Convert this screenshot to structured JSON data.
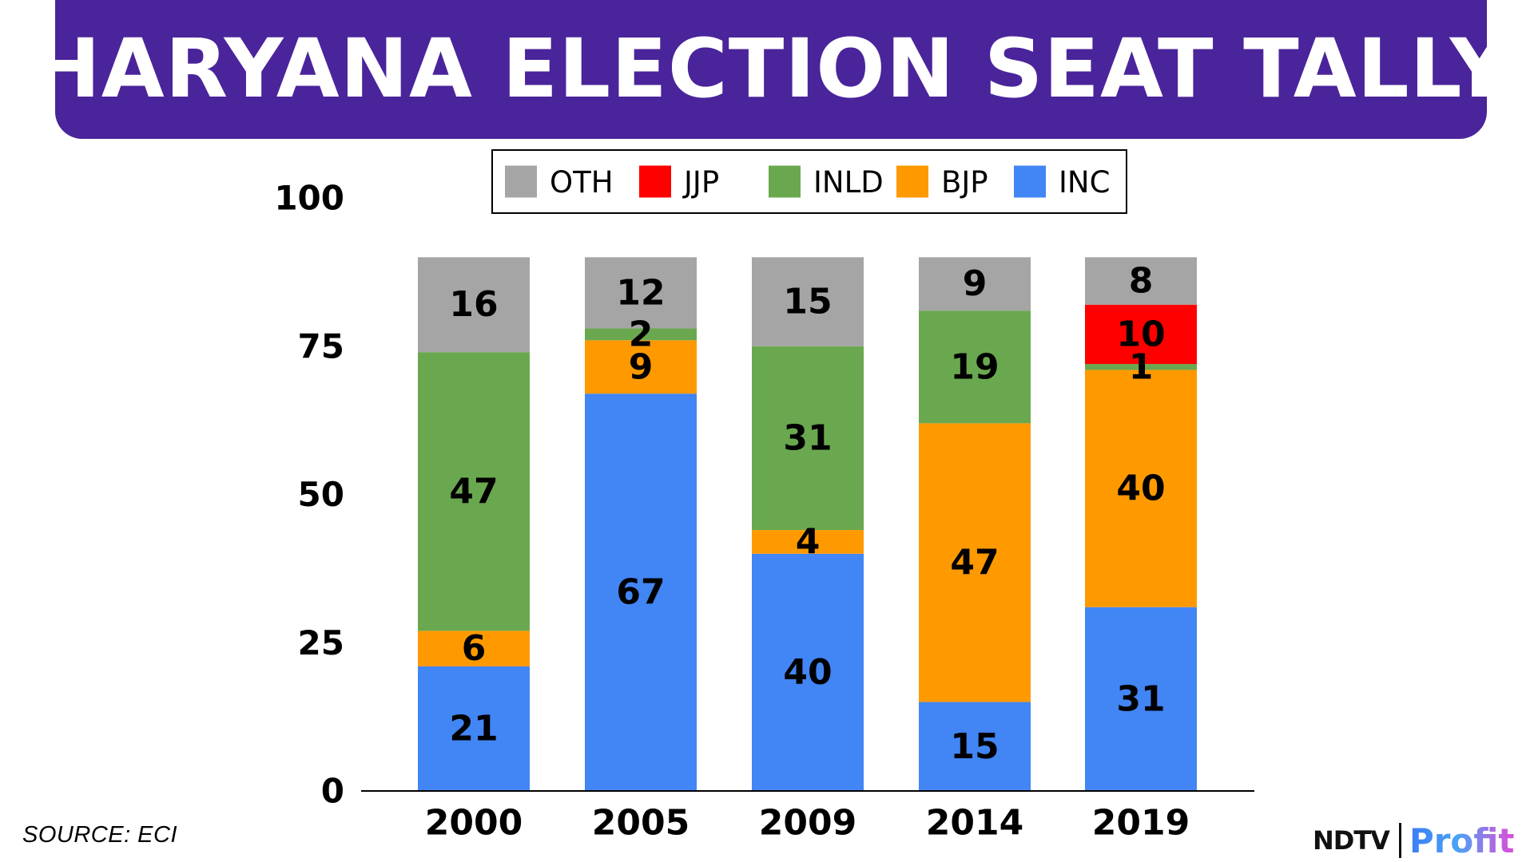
{
  "title": "HARYANA ELECTION SEAT TALLY",
  "source": "SOURCE: ECI",
  "brand": {
    "left": "NDTV",
    "right": "Profit"
  },
  "colors": {
    "banner": "#4a249b",
    "OTH": "#a5a5a5",
    "JJP": "#ff0000",
    "INLD": "#6aa84f",
    "BJP": "#ff9900",
    "INC": "#4285f4"
  },
  "chart_data": {
    "type": "bar",
    "stacked": true,
    "title": "HARYANA ELECTION SEAT TALLY",
    "xlabel": "",
    "ylabel": "",
    "ylim": [
      0,
      100
    ],
    "yticks": [
      0,
      25,
      50,
      75,
      100
    ],
    "categories": [
      "2000",
      "2005",
      "2009",
      "2014",
      "2019"
    ],
    "legend_order": [
      "OTH",
      "JJP",
      "INLD",
      "BJP",
      "INC"
    ],
    "legend_position": "top-center",
    "series": [
      {
        "name": "INC",
        "values": [
          21,
          67,
          40,
          15,
          31
        ]
      },
      {
        "name": "BJP",
        "values": [
          6,
          9,
          4,
          47,
          40
        ]
      },
      {
        "name": "INLD",
        "values": [
          47,
          2,
          31,
          19,
          1
        ]
      },
      {
        "name": "JJP",
        "values": [
          0,
          0,
          0,
          0,
          10
        ]
      },
      {
        "name": "OTH",
        "values": [
          16,
          12,
          15,
          9,
          8
        ]
      }
    ]
  }
}
